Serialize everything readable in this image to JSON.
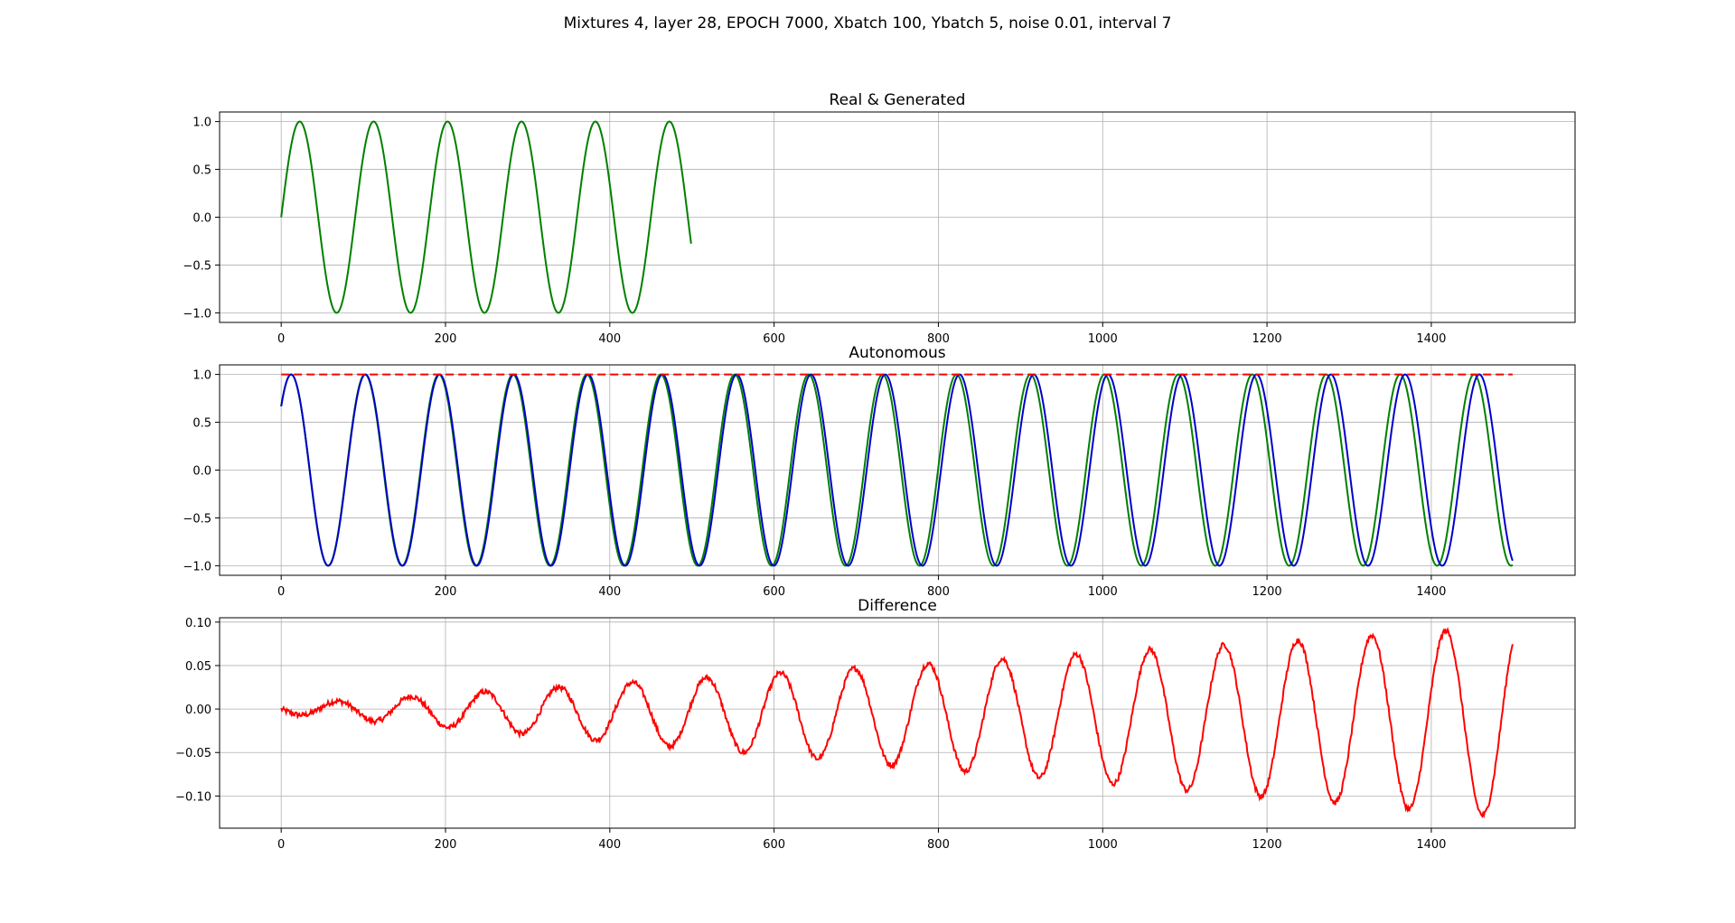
{
  "figure": {
    "suptitle": "Mixtures 4, layer 28, EPOCH 7000, Xbatch 100, Ybatch 5, noise 0.01, interval 7"
  },
  "chart_data": [
    {
      "type": "line",
      "title": "Real & Generated",
      "xlim": [
        -75,
        1575
      ],
      "ylim": [
        -1.1,
        1.1
      ],
      "xticks": [
        0,
        200,
        400,
        600,
        800,
        1000,
        1200,
        1400
      ],
      "yticks": [
        -1.0,
        -0.5,
        0.0,
        0.5,
        1.0
      ],
      "ytick_labels": [
        "−1.0",
        "−0.5",
        "0.0",
        "0.5",
        "1.0"
      ],
      "grid": true,
      "series": [
        {
          "color": "#008000",
          "style": "solid",
          "function": "sine",
          "amplitude": 1.0,
          "period": 90,
          "phase": 0,
          "x_range": [
            0,
            499
          ]
        }
      ]
    },
    {
      "type": "line",
      "title": "Autonomous",
      "xlim": [
        -75,
        1575
      ],
      "ylim": [
        -1.1,
        1.1
      ],
      "xticks": [
        0,
        200,
        400,
        600,
        800,
        1000,
        1200,
        1400
      ],
      "yticks": [
        -1.0,
        -0.5,
        0.0,
        0.5,
        1.0
      ],
      "ytick_labels": [
        "−1.0",
        "−0.5",
        "0.0",
        "0.5",
        "1.0"
      ],
      "grid": true,
      "series": [
        {
          "color": "#008000",
          "style": "solid",
          "function": "sine",
          "amplitude": 1.0,
          "period": 90,
          "phase": 0.73,
          "x_range": [
            0,
            1499
          ]
        },
        {
          "color": "#0000cc",
          "style": "solid",
          "function": "sine",
          "amplitude": 1.0,
          "period": 90.4,
          "phase": 0.73,
          "x_range": [
            0,
            1499
          ]
        },
        {
          "color": "#ff0000",
          "style": "dashed",
          "function": "constant",
          "value": 1.0,
          "x_range": [
            0,
            1499
          ]
        }
      ]
    },
    {
      "type": "line",
      "title": "Difference",
      "xlim": [
        -75,
        1575
      ],
      "ylim": [
        -0.137,
        0.105
      ],
      "xticks": [
        0,
        200,
        400,
        600,
        800,
        1000,
        1200,
        1400
      ],
      "yticks": [
        -0.1,
        -0.05,
        0.0,
        0.05,
        0.1
      ],
      "ytick_labels": [
        "−0.10",
        "−0.05",
        "0.00",
        "0.05",
        "0.10"
      ],
      "grid": true,
      "series": [
        {
          "color": "#ff0000",
          "style": "solid",
          "function": "growing-oscillation",
          "period": 90,
          "amplitude_start": 0.005,
          "amplitude_end": 0.11,
          "offset_start": 0.0,
          "offset_end": -0.015,
          "noise": 0.003,
          "x_range": [
            0,
            1499
          ]
        }
      ]
    }
  ]
}
